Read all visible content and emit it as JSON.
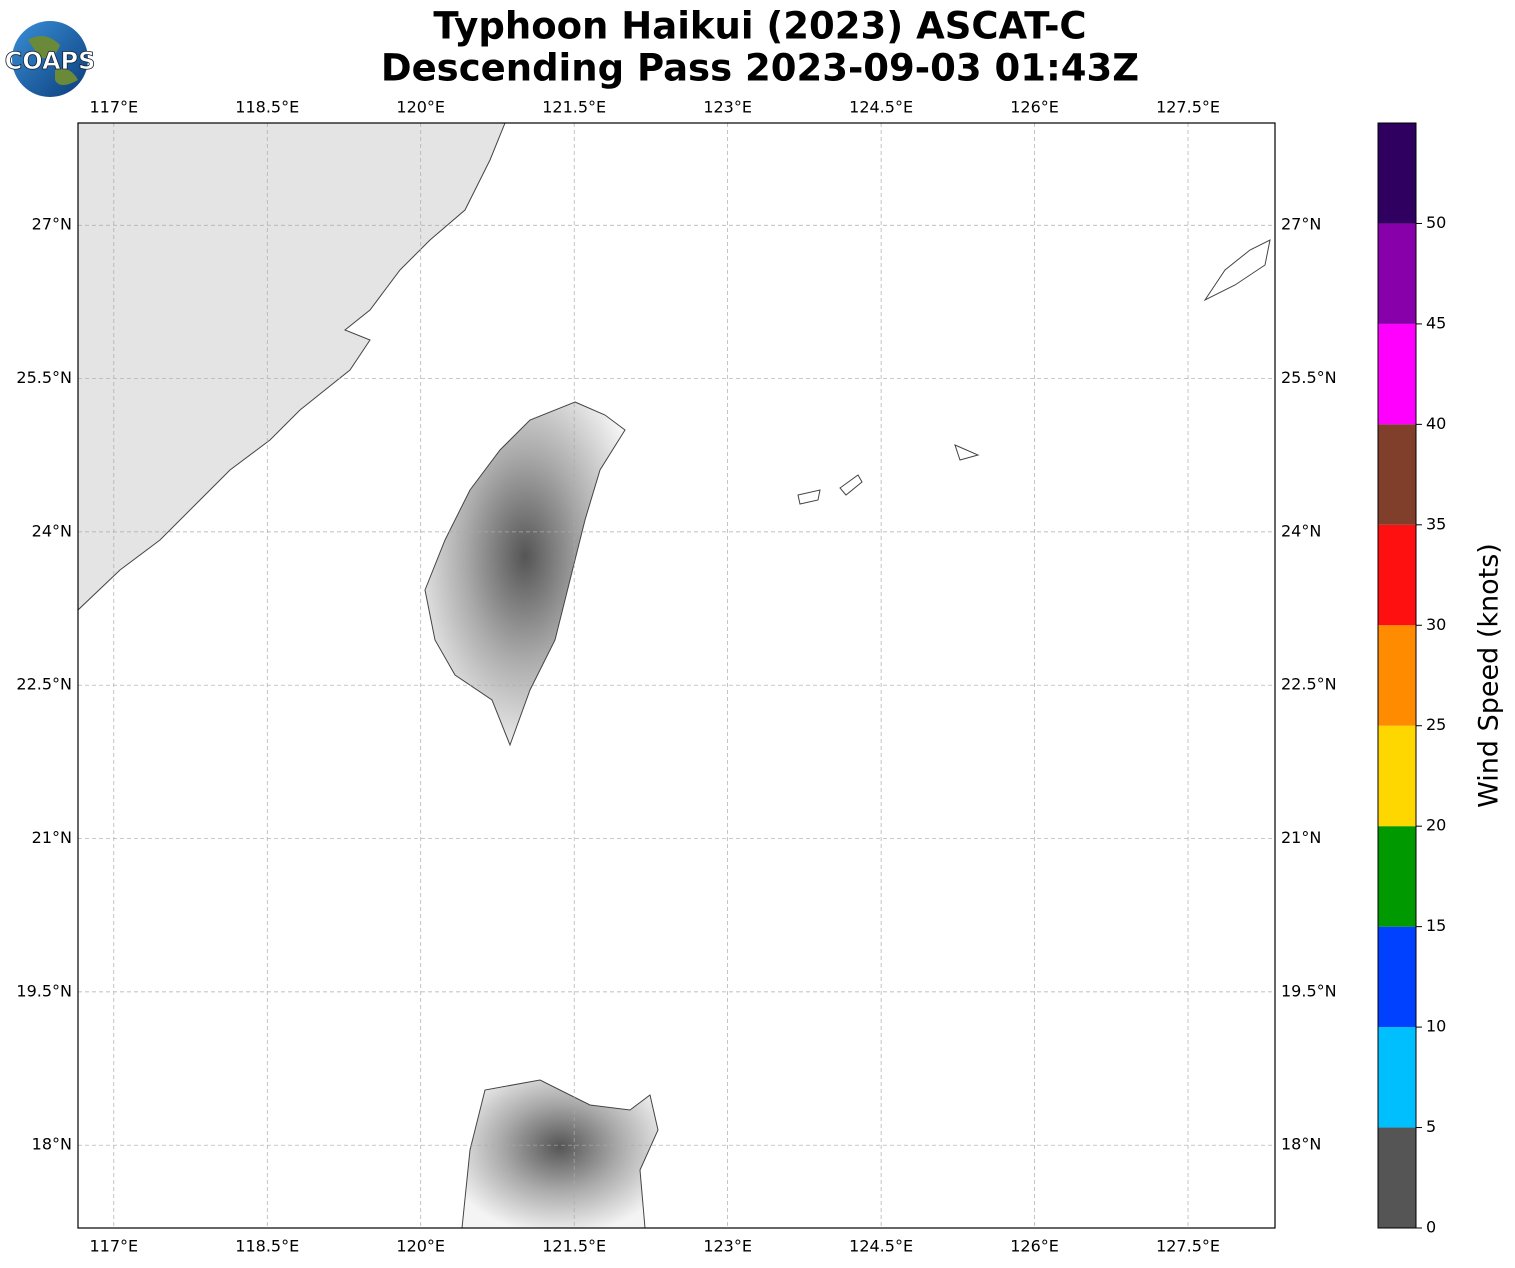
{
  "chart_data": {
    "type": "map",
    "title": "Typhoon Haikui (2023) ASCAT-C",
    "subtitle": "Descending Pass 2023-09-03 01:43Z",
    "logo": "COAPS",
    "xlim": [
      116.65,
      128.35
    ],
    "ylim": [
      17.19,
      28.0
    ],
    "xticks": [
      {
        "value": 117,
        "label": "117°E"
      },
      {
        "value": 118.5,
        "label": "118.5°E"
      },
      {
        "value": 120,
        "label": "120°E"
      },
      {
        "value": 121.5,
        "label": "121.5°E"
      },
      {
        "value": 123,
        "label": "123°E"
      },
      {
        "value": 124.5,
        "label": "124.5°E"
      },
      {
        "value": 126,
        "label": "126°E"
      },
      {
        "value": 127.5,
        "label": "127.5°E"
      }
    ],
    "yticks": [
      {
        "value": 27,
        "label": "27°N"
      },
      {
        "value": 25.5,
        "label": "25.5°N"
      },
      {
        "value": 24,
        "label": "24°N"
      },
      {
        "value": 22.5,
        "label": "22.5°N"
      },
      {
        "value": 21,
        "label": "21°N"
      },
      {
        "value": 19.5,
        "label": "19.5°N"
      },
      {
        "value": 18,
        "label": "18°N"
      }
    ],
    "grid": true,
    "colorbar": {
      "label": "Wind Speed (knots)",
      "lim": [
        0,
        55
      ],
      "bounds": [
        0,
        5,
        10,
        15,
        20,
        25,
        30,
        35,
        40,
        45,
        50,
        55
      ],
      "colors": [
        "#555555",
        "#00bfff",
        "#0040ff",
        "#009900",
        "#ffd700",
        "#ff8c00",
        "#ff1010",
        "#7f3f2a",
        "#ff00ff",
        "#8800aa",
        "#2f005f"
      ],
      "ticks": [
        0,
        5,
        10,
        15,
        20,
        25,
        30,
        35,
        40,
        45,
        50
      ]
    }
  }
}
